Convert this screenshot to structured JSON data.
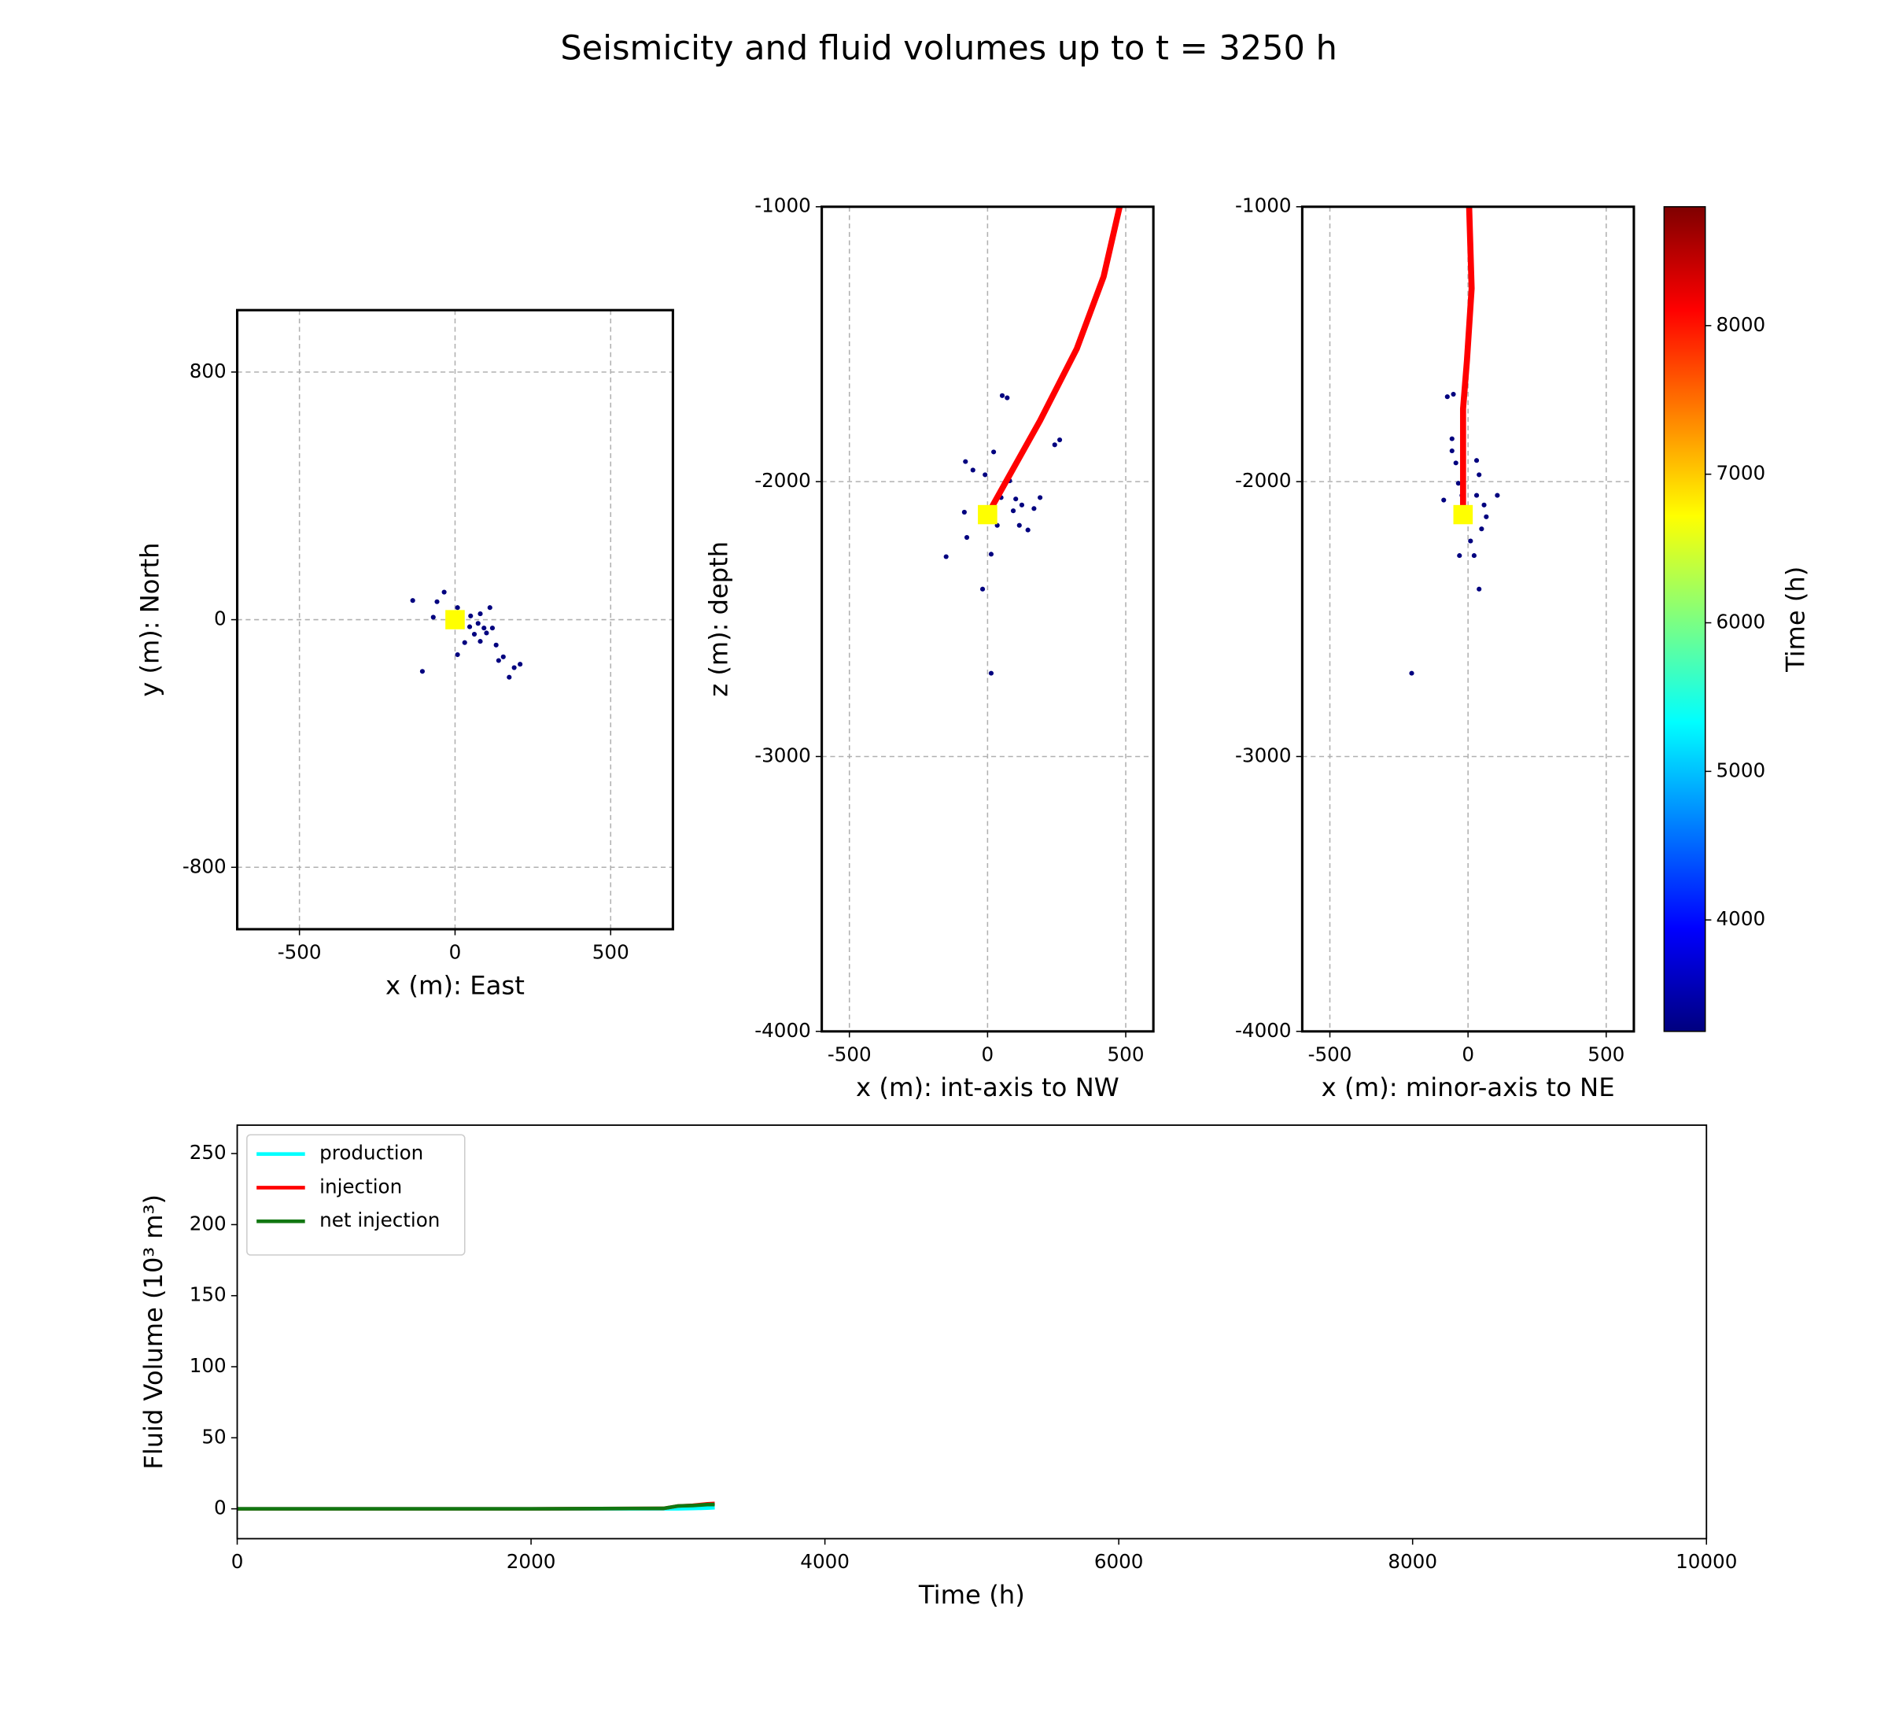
{
  "title": "Seismicity and fluid volumes up to t = 3250 h",
  "chart_data": [
    {
      "type": "scatter",
      "xlabel": "x (m): East",
      "ylabel": "y (m): North",
      "xlim": [
        -700,
        700
      ],
      "ylim": [
        -1000,
        1000
      ],
      "xticks": [
        -500,
        0,
        500
      ],
      "yticks": [
        -800,
        0,
        800
      ],
      "grid": true,
      "events": {
        "color": "#00007f",
        "x": [
          -136,
          -70,
          -58,
          -35,
          8,
          50,
          74,
          93,
          112,
          120,
          81,
          31,
          8,
          -105,
          140,
          155,
          174,
          190,
          209,
          132,
          62,
          47,
          81,
          101,
          19
        ],
        "y": [
          62,
          8,
          58,
          89,
          39,
          12,
          -12,
          -27,
          39,
          -27,
          -70,
          -74,
          -113,
          -167,
          -132,
          -120,
          -186,
          -155,
          -144,
          -82,
          -47,
          -23,
          19,
          -43,
          -19
        ]
      },
      "injection_point": {
        "x": 0,
        "y": 0,
        "color": "#ffff00"
      }
    },
    {
      "type": "scatter",
      "xlabel": "x (m): int-axis to NW",
      "ylabel": "z (m): depth",
      "xlim": [
        -600,
        600
      ],
      "ylim": [
        -4000,
        -1000
      ],
      "xticks": [
        -500,
        0,
        500
      ],
      "yticks": [
        -4000,
        -3000,
        -2000,
        -1000
      ],
      "grid": true,
      "events": {
        "color": "#00007f",
        "x": [
          53,
          71,
          -80,
          -53,
          22,
          -9,
          58,
          102,
          93,
          115,
          146,
          190,
          243,
          261,
          -84,
          -75,
          -150,
          -18,
          13,
          13,
          49,
          80,
          124,
          35,
          168
        ],
        "y": [
          -1687,
          -1695,
          -1927,
          -1958,
          -1892,
          -1975,
          -2019,
          -2063,
          -2106,
          -2159,
          -2176,
          -2058,
          -1866,
          -1848,
          -2111,
          -2203,
          -2273,
          -2391,
          -2264,
          -2697,
          -2058,
          -1997,
          -2085,
          -2159,
          -2098
        ]
      },
      "well": {
        "color": "#ff0000",
        "x": [
          0,
          190,
          323,
          420,
          478
        ],
        "y": [
          -2120,
          -1778,
          -1516,
          -1254,
          -1000
        ]
      },
      "injection_point": {
        "x": 0,
        "y": -2120,
        "color": "#ffff00"
      }
    },
    {
      "type": "scatter",
      "xlabel": "x (m): minor-axis to NE",
      "xlim": [
        -600,
        600
      ],
      "ylim": [
        -4000,
        -1000
      ],
      "xticks": [
        -500,
        0,
        500
      ],
      "yticks": [
        -4000,
        -3000,
        -2000,
        -1000
      ],
      "grid": true,
      "events": {
        "color": "#00007f",
        "x": [
          -75,
          -53,
          -58,
          -58,
          -44,
          31,
          40,
          -35,
          -88,
          106,
          66,
          49,
          9,
          -31,
          22,
          40,
          -204,
          31,
          -22,
          58
        ],
        "y": [
          -1691,
          -1682,
          -1844,
          -1888,
          -1932,
          -1923,
          -1975,
          -2006,
          -2067,
          -2050,
          -2128,
          -2172,
          -2216,
          -2269,
          -2269,
          -2391,
          -2697,
          -2050,
          -2050,
          -2085
        ]
      },
      "well": {
        "color": "#ff0000",
        "x": [
          -18,
          -18,
          -4,
          13,
          4
        ],
        "y": [
          -2120,
          -1735,
          -1560,
          -1297,
          -1000
        ]
      },
      "injection_point": {
        "x": -18,
        "y": -2120,
        "color": "#ffff00"
      }
    },
    {
      "type": "colorbar",
      "ylabel": "Time (h)",
      "ylim": [
        3250,
        8800
      ],
      "yticks": [
        4000,
        5000,
        6000,
        7000,
        8000
      ],
      "colors": [
        "#00007f",
        "#0000ff",
        "#007fff",
        "#00ffff",
        "#7fff7f",
        "#ffff00",
        "#ff7f00",
        "#ff0000",
        "#7f0000"
      ]
    },
    {
      "type": "line",
      "xlabel": "Time (h)",
      "ylabel": "Fluid Volume (10³ m³)",
      "xlim": [
        0,
        10000
      ],
      "ylim": [
        -21,
        270
      ],
      "xticks": [
        0,
        2000,
        4000,
        6000,
        8000,
        10000
      ],
      "yticks": [
        0,
        50,
        100,
        150,
        200,
        250
      ],
      "legend": "upper left",
      "x": [
        0,
        1000,
        2000,
        2900,
        3000,
        3100,
        3200,
        3250
      ],
      "series": [
        {
          "name": "production",
          "color": "#00ffff",
          "values": [
            0,
            0,
            0,
            0,
            0,
            0.2,
            0.5,
            0.8
          ]
        },
        {
          "name": "injection",
          "color": "#ff0000",
          "values": [
            0,
            0,
            0,
            0.3,
            2,
            2.5,
            3.5,
            3.8
          ]
        },
        {
          "name": "net injection",
          "color": "#117711",
          "values": [
            0,
            0,
            0,
            0.3,
            2,
            2.3,
            3,
            3
          ]
        }
      ]
    }
  ]
}
